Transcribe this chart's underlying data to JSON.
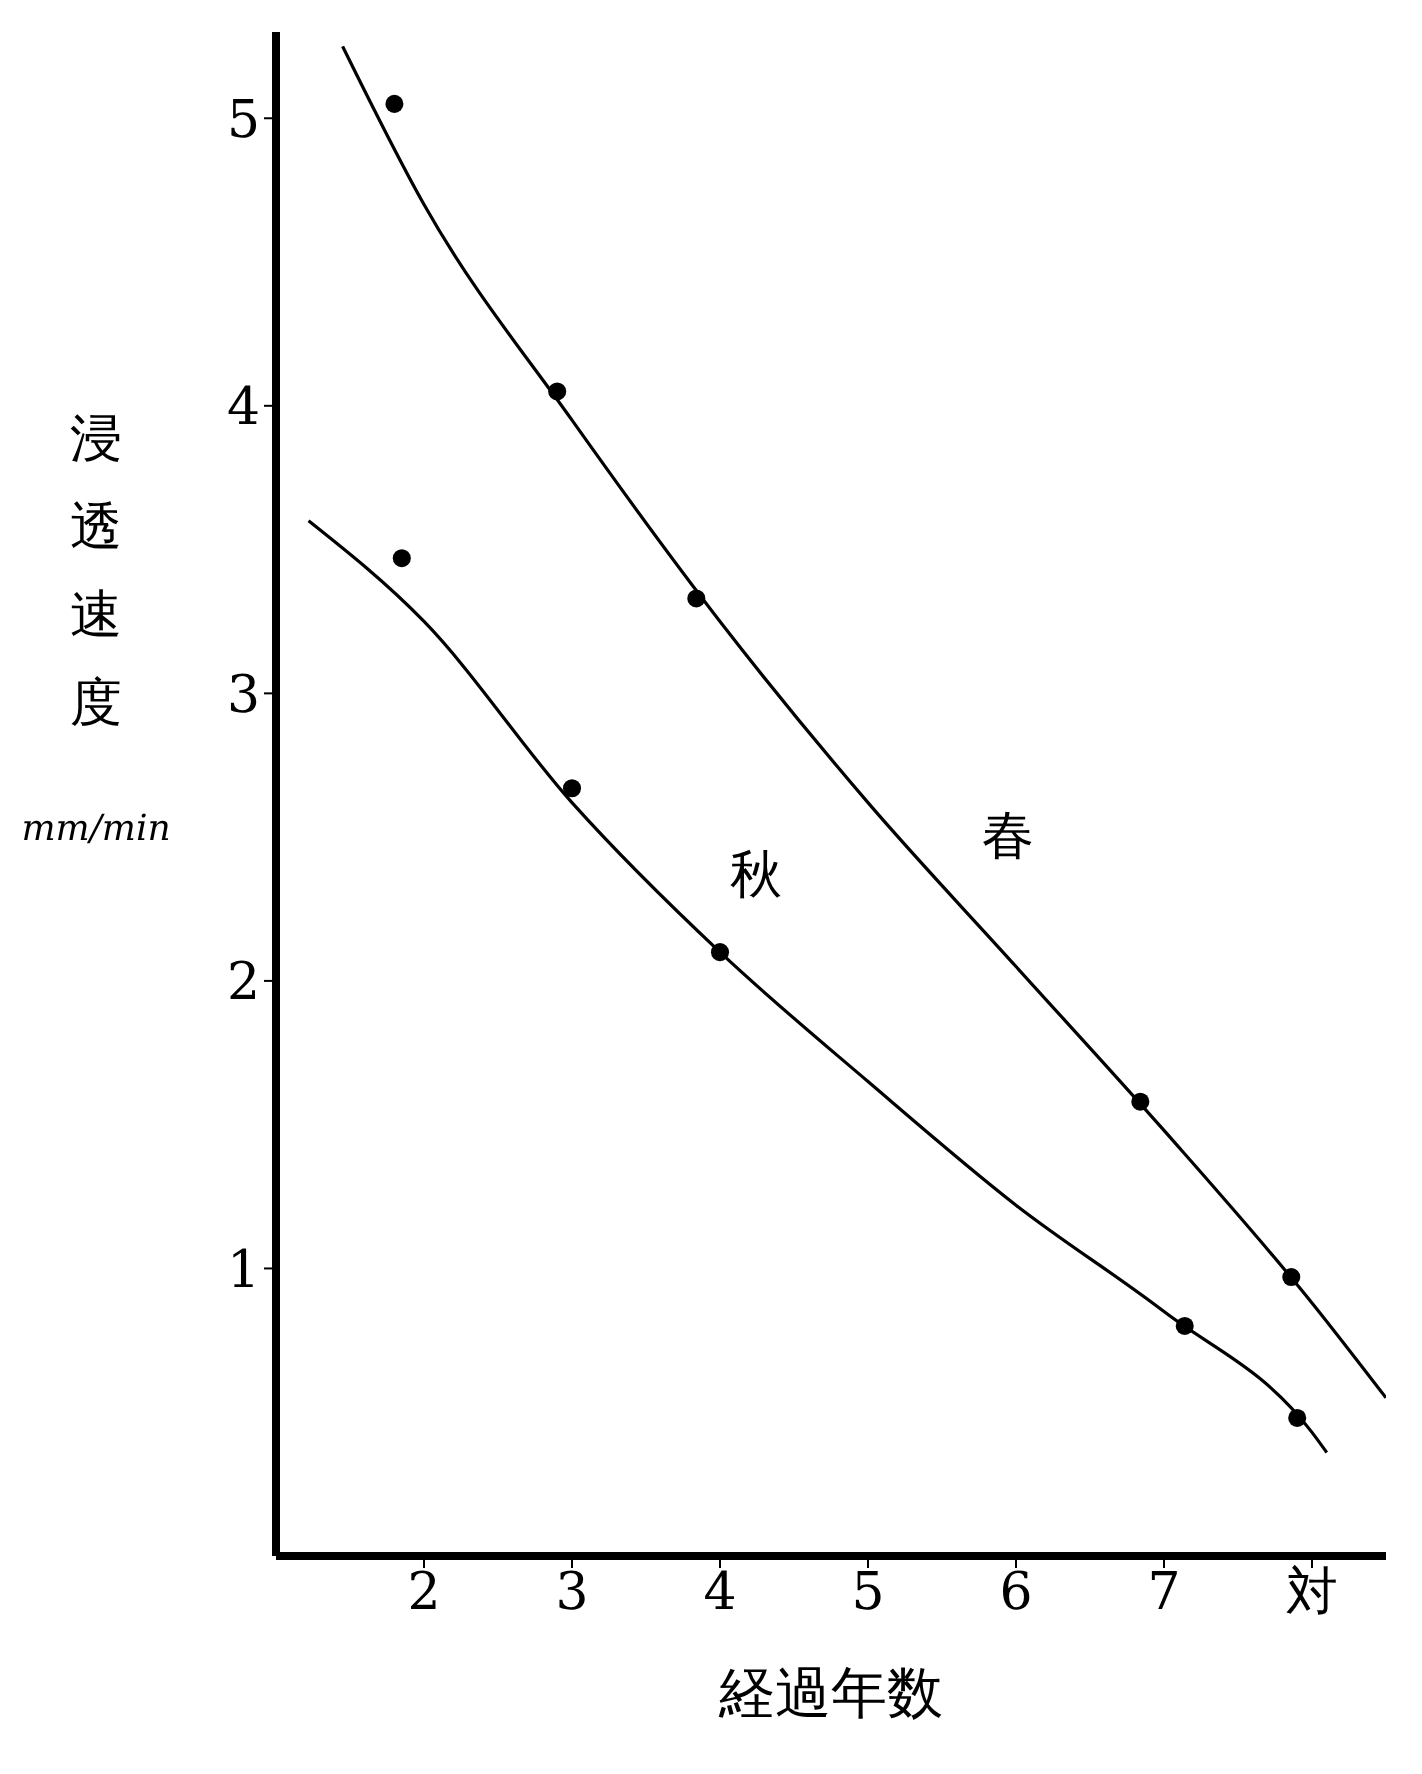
{
  "chart_data": {
    "type": "scatter",
    "xlabel": "経過年数",
    "ylabel": "浸透速度 mm/min",
    "xlim": [
      1,
      8.5
    ],
    "xticks": [
      2,
      3,
      4,
      5,
      6,
      7,
      {
        "value": 8,
        "label": "対"
      }
    ],
    "ylim": [
      0,
      5.3
    ],
    "yticks": [
      1,
      2,
      3,
      4,
      5
    ],
    "grid": false,
    "legend": false,
    "series": [
      {
        "color": "#000000",
        "marker": "circle",
        "x": [
          1.8,
          2.9,
          3.84,
          6.84,
          7.86
        ],
        "values": [
          5.05,
          4.05,
          3.33,
          1.58,
          0.97
        ]
      },
      {
        "color": "#000000",
        "marker": "circle",
        "x": [
          1.85,
          3.0,
          4.0,
          7.14,
          7.9
        ],
        "values": [
          3.47,
          2.67,
          2.1,
          0.8,
          0.48
        ]
      },
      {
        "type": "line",
        "name": "春",
        "color": "#000000",
        "marker": "none",
        "x": [
          1.45,
          2,
          3,
          4,
          5,
          6,
          7,
          8,
          8.5
        ],
        "values": [
          5.25,
          4.7,
          3.95,
          3.25,
          2.62,
          2.05,
          1.48,
          0.88,
          0.55
        ]
      },
      {
        "type": "line",
        "name": "秋",
        "color": "#000000",
        "marker": "none",
        "x": [
          1.22,
          2,
          3,
          4,
          5,
          6,
          7,
          8,
          8.1
        ],
        "values": [
          3.6,
          3.25,
          2.62,
          2.1,
          1.65,
          1.22,
          0.85,
          0.43,
          0.36
        ]
      }
    ]
  }
}
